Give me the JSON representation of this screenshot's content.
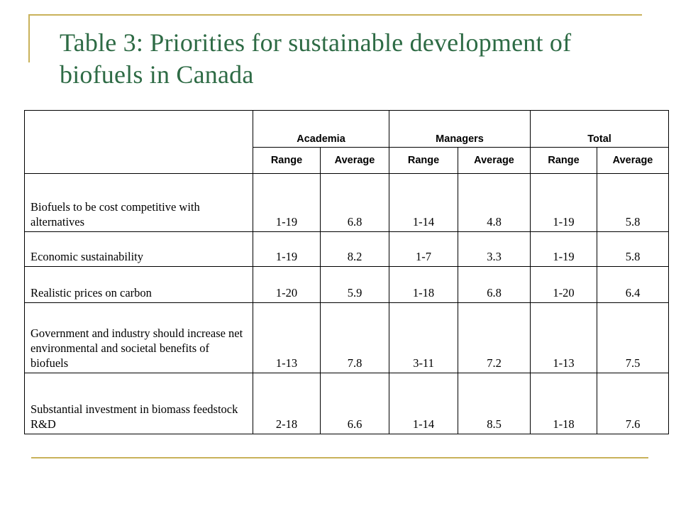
{
  "slide": {
    "title": "Table 3: Priorities for sustainable development of biofuels in Canada"
  },
  "table": {
    "groups": [
      "Academia",
      "Managers",
      "Total"
    ],
    "subheaders": [
      "Range",
      "Average",
      "Range",
      "Average",
      "Range",
      "Average"
    ],
    "rows": [
      {
        "label": "Biofuels  to be cost competitive with alternatives",
        "values": [
          "1-19",
          "6.8",
          "1-14",
          "4.8",
          "1-19",
          "5.8"
        ]
      },
      {
        "label": "Economic sustainability",
        "values": [
          "1-19",
          "8.2",
          "1-7",
          "3.3",
          "1-19",
          "5.8"
        ]
      },
      {
        "label": "Realistic prices on carbon",
        "values": [
          "1-20",
          "5.9",
          "1-18",
          "6.8",
          "1-20",
          "6.4"
        ]
      },
      {
        "label": "Government and industry should increase net environmental and societal benefits of biofuels",
        "values": [
          "1-13",
          "7.8",
          "3-11",
          "7.2",
          "1-13",
          "7.5"
        ]
      },
      {
        "label": "Substantial investment in biomass feedstock R&D",
        "values": [
          "2-18",
          "6.6",
          "1-14",
          "8.5",
          "1-18",
          "7.6"
        ]
      }
    ]
  }
}
